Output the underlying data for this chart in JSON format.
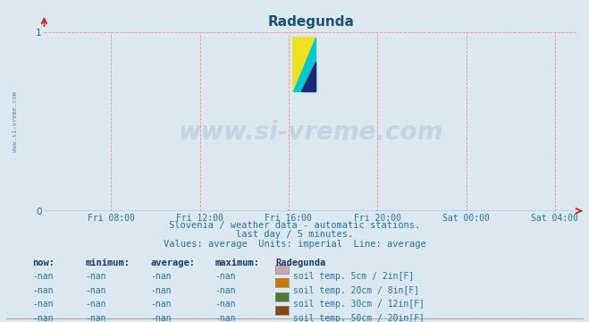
{
  "title": "Radegunda",
  "title_color": "#1a5276",
  "bg_color": "#dce8f0",
  "plot_bg_color": "#dce8f0",
  "x_tick_labels": [
    "Fri 08:00",
    "Fri 12:00",
    "Fri 16:00",
    "Fri 20:00",
    "Sat 00:00",
    "Sat 04:00"
  ],
  "x_tick_positions": [
    0.125,
    0.292,
    0.458,
    0.625,
    0.792,
    0.958
  ],
  "y_min": 0,
  "y_max": 1,
  "y_ticks": [
    0,
    1
  ],
  "grid_color": "#ff8888",
  "subtitle_lines": [
    "Slovenia / weather data - automatic stations.",
    "last day / 5 minutes.",
    "Values: average  Units: imperial  Line: average"
  ],
  "subtitle_color": "#2471a3",
  "subtitle_fontsize": 7.5,
  "left_label": "www.si-vreme.com",
  "legend_header": "Radegunda",
  "legend_entries": [
    {
      "color": "#c8a8a8",
      "label": "soil temp. 5cm / 2in[F]"
    },
    {
      "color": "#c87800",
      "label": "soil temp. 20cm / 8in[F]"
    },
    {
      "color": "#507830",
      "label": "soil temp. 30cm / 12in[F]"
    },
    {
      "color": "#8b4513",
      "label": "soil temp. 50cm / 20in[F]"
    }
  ],
  "legend_col_headers": [
    "now:",
    "minimum:",
    "average:",
    "maximum:"
  ],
  "nan_val": "-nan",
  "logo_colors": {
    "yellow": "#f0e020",
    "cyan": "#00c8d0",
    "blue": "#1a2878"
  },
  "watermark_text": "www.si-vreme.com",
  "watermark_color": "#1a5276",
  "axis_line_color": "#6666bb",
  "arrow_color": "#cc2222"
}
